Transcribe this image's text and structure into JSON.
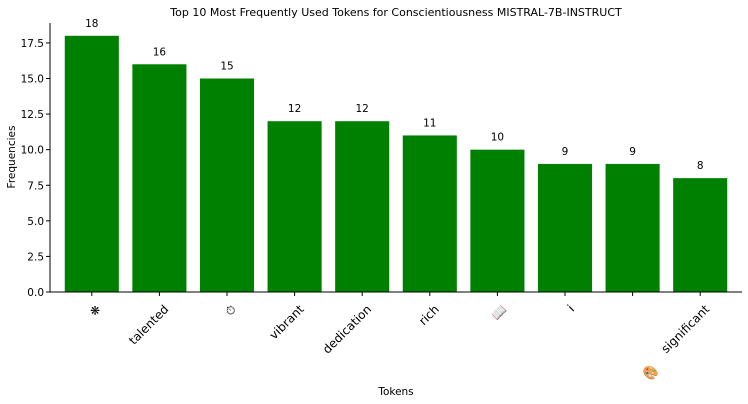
{
  "chart_data": {
    "type": "bar",
    "title": "Top 10 Most Frequently Used Tokens for Conscientiousness MISTRAL-7B-INSTRUCT",
    "xlabel": "Tokens",
    "ylabel": "Frequencies",
    "categories": [
      "❋",
      "talented",
      "⏱",
      "vibrant",
      "dedication",
      "rich",
      "📖",
      "i",
      "",
      "significant"
    ],
    "values": [
      18,
      16,
      15,
      12,
      12,
      11,
      10,
      9,
      9,
      8
    ],
    "data_labels": [
      "18",
      "16",
      "15",
      "12",
      "12",
      "11",
      "10",
      "9",
      "9",
      "8"
    ],
    "yticks": [
      0,
      2.5,
      5,
      7.5,
      10,
      12.5,
      15,
      17.5
    ],
    "ytick_labels": [
      "0.0",
      "2.5",
      "5.0",
      "7.5",
      "10.0",
      "12.5",
      "15.0",
      "17.5"
    ],
    "ylim": [
      0,
      18.9
    ],
    "extra_glyph": "🎨",
    "bar_color": "#008000",
    "grid": false,
    "legend": "none"
  }
}
